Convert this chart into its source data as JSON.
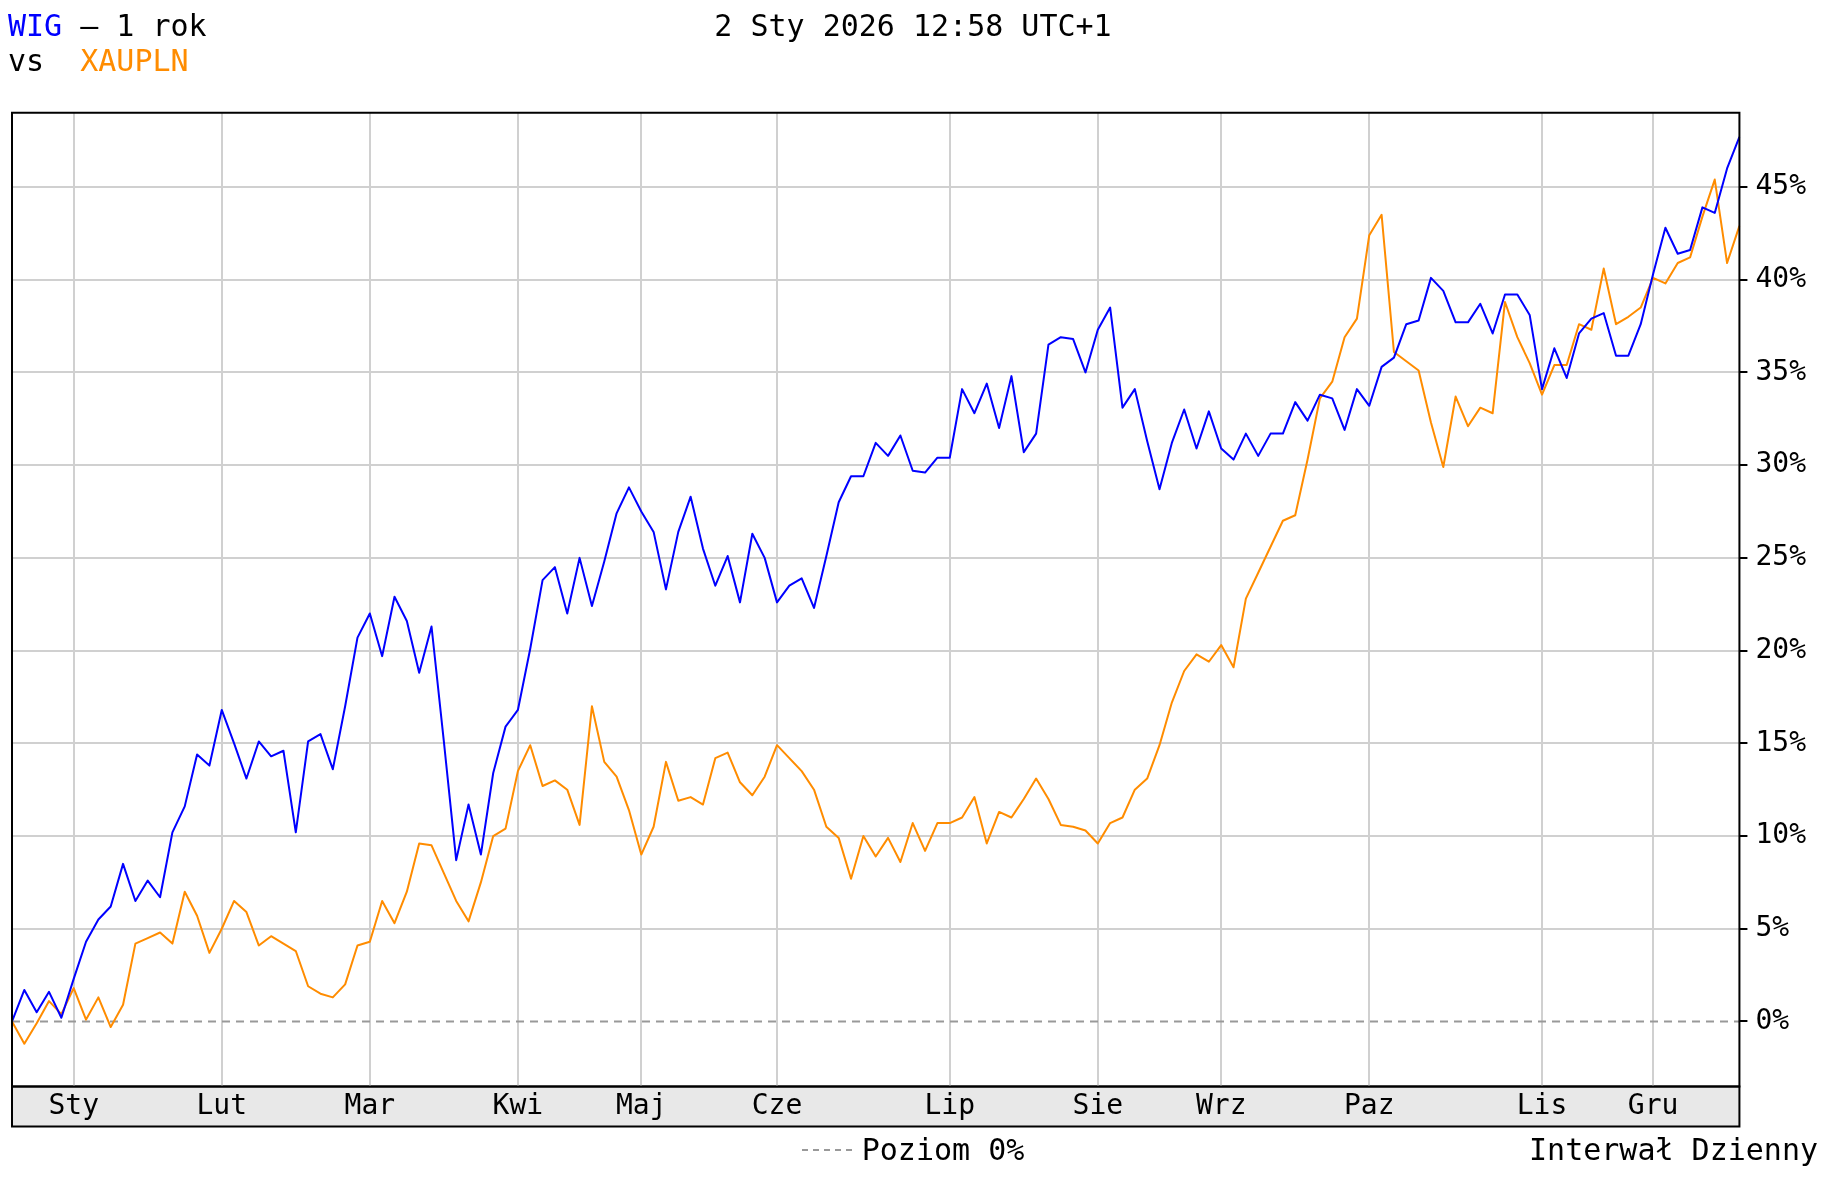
{
  "chart_data": {
    "type": "line",
    "title": "2 Sty 2026 12:58 UTC+1",
    "annotations": [
      "– 1 rok",
      "vs",
      "Interwał Dzienny"
    ],
    "legend": "bottom",
    "grid": true,
    "marker": "none",
    "line_style": "solid",
    "categories": [
      null,
      null,
      null,
      null,
      null,
      "Sty",
      null,
      null,
      null,
      null,
      null,
      null,
      null,
      null,
      null,
      null,
      null,
      "Lut",
      null,
      null,
      null,
      null,
      null,
      null,
      null,
      null,
      null,
      null,
      null,
      "Mar",
      null,
      null,
      null,
      null,
      null,
      null,
      null,
      null,
      null,
      null,
      null,
      "Kwi",
      null,
      null,
      null,
      null,
      null,
      null,
      null,
      null,
      null,
      "Maj",
      null,
      null,
      null,
      null,
      null,
      null,
      null,
      null,
      null,
      null,
      "Cze",
      null,
      null,
      null,
      null,
      null,
      null,
      null,
      null,
      null,
      null,
      null,
      null,
      null,
      "Lip",
      null,
      null,
      null,
      null,
      null,
      null,
      null,
      null,
      null,
      null,
      null,
      "Sie",
      null,
      null,
      null,
      null,
      null,
      null,
      null,
      null,
      null,
      "Wrz",
      null,
      null,
      null,
      null,
      null,
      null,
      null,
      null,
      null,
      null,
      null,
      "Paz",
      null,
      null,
      null,
      null,
      null,
      null,
      null,
      null,
      null,
      null,
      null,
      null,
      null,
      "Lis",
      null,
      null,
      null,
      null,
      null,
      null,
      null,
      null,
      "Gru",
      null,
      null,
      null,
      null,
      null,
      null,
      null
    ],
    "ylim": [
      -3.5,
      49
    ],
    "yticks": [
      {
        "value": 0,
        "label": "0%"
      },
      {
        "value": 5,
        "label": "5%"
      },
      {
        "value": 10,
        "label": "10%"
      },
      {
        "value": 15,
        "label": "15%"
      },
      {
        "value": 20,
        "label": "20%"
      },
      {
        "value": 25,
        "label": "25%"
      },
      {
        "value": 30,
        "label": "30%"
      },
      {
        "value": 35,
        "label": "35%"
      },
      {
        "value": 40,
        "label": "40%"
      },
      {
        "value": 45,
        "label": "45%"
      }
    ],
    "ref_lines": [
      {
        "axis": "y",
        "value": 0,
        "label": "Poziom 0%",
        "color": "#999999",
        "line_style": "dashed"
      }
    ],
    "series": [
      {
        "name": "WIG",
        "color": "#0000ff",
        "values": [
          0,
          1.7,
          0.5,
          1.6,
          0.2,
          2.3,
          4.3,
          5.5,
          6.2,
          8.5,
          6.5,
          7.6,
          6.7,
          10.2,
          11.6,
          14.4,
          13.8,
          16.8,
          15.0,
          13.1,
          15.1,
          14.3,
          14.6,
          10.2,
          15.1,
          15.5,
          13.6,
          17.0,
          20.7,
          22.0,
          19.7,
          22.9,
          21.6,
          18.8,
          21.3,
          15.1,
          8.7,
          11.7,
          9.0,
          13.4,
          15.9,
          16.8,
          20.1,
          23.8,
          24.5,
          22.0,
          25.0,
          22.4,
          24.8,
          27.4,
          28.8,
          27.5,
          26.4,
          23.3,
          26.4,
          28.3,
          25.5,
          23.5,
          25.1,
          22.6,
          26.3,
          25.0,
          22.6,
          23.5,
          23.9,
          22.3,
          25.1,
          28.0,
          29.4,
          29.4,
          31.2,
          30.5,
          31.6,
          29.7,
          29.6,
          30.4,
          30.4,
          34.1,
          32.8,
          34.4,
          32.0,
          34.8,
          30.7,
          31.7,
          36.5,
          36.9,
          36.8,
          35.0,
          37.3,
          38.5,
          33.1,
          34.1,
          31.3,
          28.7,
          31.2,
          33.0,
          30.9,
          32.9,
          30.9,
          30.3,
          31.7,
          30.5,
          31.7,
          31.7,
          33.4,
          32.4,
          33.8,
          33.6,
          31.9,
          34.1,
          33.2,
          35.3,
          35.8,
          37.6,
          37.8,
          40.1,
          39.4,
          37.7,
          37.7,
          38.7,
          37.1,
          39.2,
          39.2,
          38.1,
          34.1,
          36.3,
          34.7,
          37.1,
          37.9,
          38.2,
          35.9,
          35.9,
          37.6,
          40.3,
          42.8,
          41.4,
          41.6,
          43.9,
          43.6,
          46.0,
          47.7
        ]
      },
      {
        "name": "XAUPLN",
        "color": "#ff8c00",
        "values": [
          0,
          -1.2,
          -0.1,
          1.1,
          0.4,
          1.8,
          0.1,
          1.3,
          -0.3,
          0.9,
          4.2,
          4.5,
          4.8,
          4.2,
          7.0,
          5.7,
          3.7,
          5.0,
          6.5,
          5.9,
          4.1,
          4.6,
          4.2,
          3.8,
          1.9,
          1.5,
          1.3,
          2.0,
          4.1,
          4.3,
          6.5,
          5.3,
          7.0,
          9.6,
          9.5,
          8.0,
          6.5,
          5.4,
          7.5,
          10.0,
          10.4,
          13.5,
          14.9,
          12.7,
          13.0,
          12.5,
          10.6,
          17.0,
          14.0,
          13.2,
          11.4,
          9.0,
          10.5,
          14.0,
          11.9,
          12.1,
          11.7,
          14.2,
          14.5,
          12.9,
          12.2,
          13.2,
          14.9,
          14.2,
          13.5,
          12.5,
          10.5,
          9.9,
          7.7,
          10.0,
          8.9,
          9.9,
          8.6,
          10.7,
          9.2,
          10.7,
          10.7,
          11.0,
          12.1,
          9.6,
          11.3,
          11.0,
          12.0,
          13.1,
          12.0,
          10.6,
          10.5,
          10.3,
          9.6,
          10.7,
          11.0,
          12.5,
          13.1,
          14.9,
          17.2,
          18.9,
          19.8,
          19.4,
          20.3,
          19.1,
          22.8,
          24.2,
          25.6,
          27.0,
          27.3,
          30.3,
          33.6,
          34.5,
          36.9,
          37.9,
          42.4,
          43.5,
          36.1,
          35.6,
          35.1,
          32.3,
          29.9,
          33.7,
          32.1,
          33.1,
          32.8,
          38.8,
          36.9,
          35.5,
          33.8,
          35.4,
          35.4,
          37.6,
          37.3,
          40.6,
          37.6,
          38.0,
          38.5,
          40.1,
          39.8,
          40.9,
          41.2,
          43.4,
          45.4,
          40.9,
          42.9
        ]
      }
    ]
  }
}
